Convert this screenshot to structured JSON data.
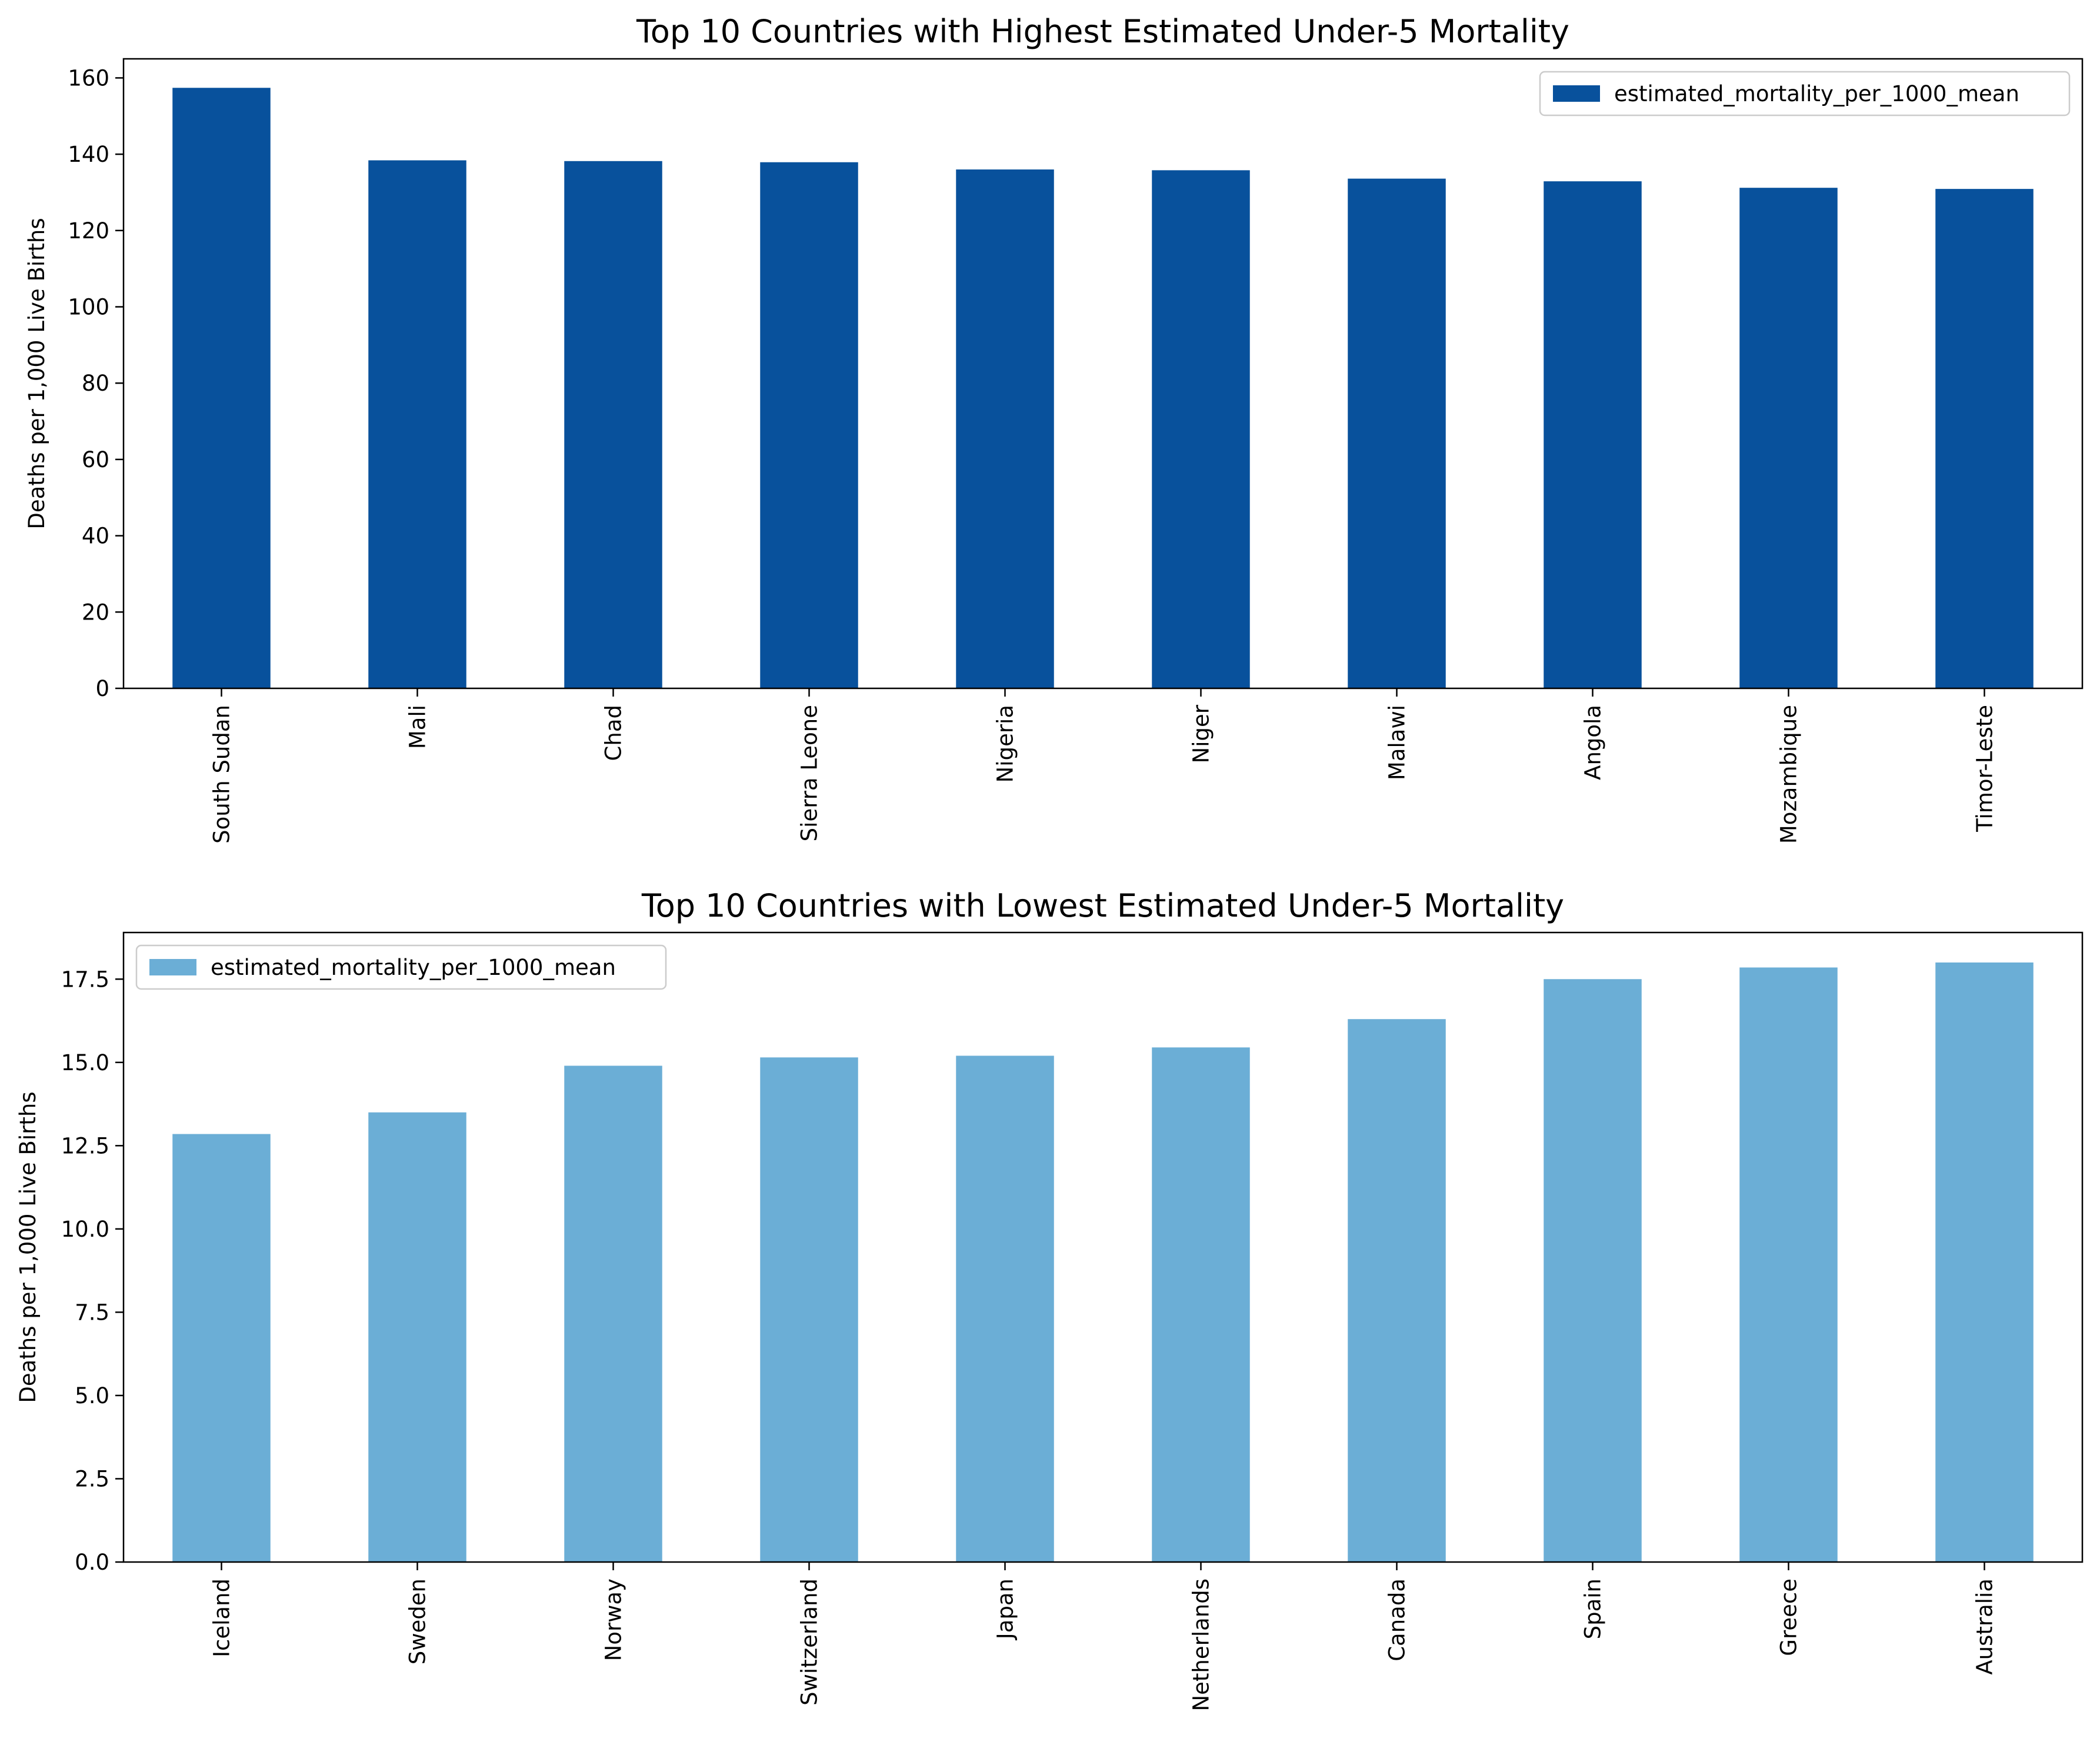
{
  "chart_data": [
    {
      "type": "bar",
      "title": "Top 10 Countries with Highest Estimated Under-5 Mortality",
      "xlabel": "",
      "ylabel": "Deaths per 1,000 Live Births",
      "ylim": [
        0,
        165
      ],
      "yticks": [
        0,
        20,
        40,
        60,
        80,
        100,
        120,
        140,
        160
      ],
      "ytick_labels": [
        "0",
        "20",
        "40",
        "60",
        "80",
        "100",
        "120",
        "140",
        "160"
      ],
      "categories": [
        "South Sudan",
        "Mali",
        "Chad",
        "Sierra Leone",
        "Nigeria",
        "Niger",
        "Malawi",
        "Angola",
        "Mozambique",
        "Timor-Leste"
      ],
      "series": [
        {
          "name": "estimated_mortality_per_1000_mean",
          "color": "#08519c",
          "values": [
            157.4,
            138.4,
            138.2,
            137.9,
            136.0,
            135.8,
            133.6,
            132.9,
            131.2,
            130.9
          ]
        }
      ],
      "legend": "upper right",
      "grid": false
    },
    {
      "type": "bar",
      "title": "Top 10 Countries with Lowest Estimated Under-5 Mortality",
      "xlabel": "",
      "ylabel": "Deaths per 1,000 Live Births",
      "ylim": [
        0,
        18.9
      ],
      "yticks": [
        0,
        2.5,
        5,
        7.5,
        10,
        12.5,
        15,
        17.5
      ],
      "ytick_labels": [
        "0.0",
        "2.5",
        "5.0",
        "7.5",
        "10.0",
        "12.5",
        "15.0",
        "17.5"
      ],
      "categories": [
        "Iceland",
        "Sweden",
        "Norway",
        "Switzerland",
        "Japan",
        "Netherlands",
        "Canada",
        "Spain",
        "Greece",
        "Australia"
      ],
      "series": [
        {
          "name": "estimated_mortality_per_1000_mean",
          "color": "#6baed6",
          "values": [
            12.85,
            13.5,
            14.9,
            15.15,
            15.2,
            15.45,
            16.3,
            17.5,
            17.85,
            18.0
          ]
        }
      ],
      "legend": "upper left",
      "grid": false
    }
  ]
}
